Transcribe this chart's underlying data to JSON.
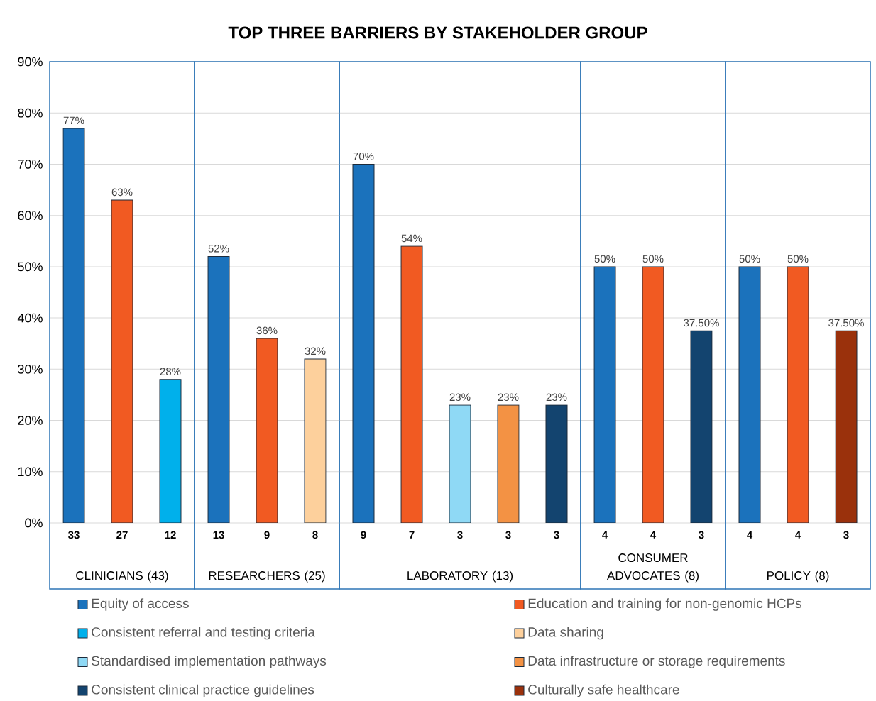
{
  "chart_data": [
    {
      "type": "bar",
      "xlabel": "CLINICIANS (43)",
      "categories": [
        "33",
        "27",
        "12"
      ],
      "ylim": [
        0,
        90
      ],
      "yticks": [
        {
          "value": 0,
          "label": "0%"
        },
        {
          "value": 10,
          "label": "10%"
        },
        {
          "value": 20,
          "label": "20%"
        },
        {
          "value": 30,
          "label": "30%"
        },
        {
          "value": 40,
          "label": "40%"
        },
        {
          "value": 50,
          "label": "50%"
        },
        {
          "value": 60,
          "label": "60%"
        },
        {
          "value": 70,
          "label": "70%"
        },
        {
          "value": 80,
          "label": "80%"
        },
        {
          "value": 90,
          "label": "90%"
        }
      ],
      "grid": "y",
      "legend": "bottom",
      "series": [
        {
          "name": "Equity of access",
          "color": "#1b72bc",
          "values": [
            77,
            null,
            null
          ],
          "value_labels": [
            "77%",
            null,
            null
          ]
        },
        {
          "name": "Education and training for non-genomic HCPs",
          "color": "#f15a22",
          "values": [
            null,
            63,
            null
          ],
          "value_labels": [
            null,
            "63%",
            null
          ]
        },
        {
          "name": "Consistent referral and testing criteria",
          "color": "#00b0eb",
          "values": [
            null,
            null,
            28
          ],
          "value_labels": [
            null,
            null,
            "28%"
          ]
        }
      ]
    },
    {
      "type": "bar",
      "xlabel": "RESEARCHERS (25)",
      "categories": [
        "13",
        "9",
        "8"
      ],
      "ylim": [
        0,
        90
      ],
      "yticks": [
        {
          "value": 0,
          "label": null
        },
        {
          "value": 10,
          "label": null
        },
        {
          "value": 20,
          "label": null
        },
        {
          "value": 30,
          "label": null
        },
        {
          "value": 40,
          "label": null
        },
        {
          "value": 50,
          "label": null
        },
        {
          "value": 60,
          "label": null
        },
        {
          "value": 70,
          "label": null
        },
        {
          "value": 80,
          "label": null
        },
        {
          "value": 90,
          "label": null
        }
      ],
      "grid": "y",
      "tick_labels": "x",
      "legend": "bottom",
      "series": [
        {
          "color": "#1b72bc",
          "values": [
            52,
            null,
            null
          ],
          "value_labels": [
            "52%",
            null,
            null
          ]
        },
        {
          "color": "#f15a22",
          "values": [
            null,
            36,
            null
          ],
          "value_labels": [
            null,
            "36%",
            null
          ]
        },
        {
          "name": "Data sharing",
          "color": "#fdd09c",
          "values": [
            null,
            null,
            32
          ],
          "value_labels": [
            null,
            null,
            "32%"
          ]
        }
      ]
    },
    {
      "type": "bar",
      "title": "TOP THREE BARRIERS BY STAKEHOLDER GROUP",
      "xlabel": "LABORATORY (13)",
      "categories": [
        "9",
        "7",
        "3",
        "3",
        "3"
      ],
      "ylim": [
        0,
        90
      ],
      "yticks": [
        {
          "value": 0,
          "label": null
        },
        {
          "value": 10,
          "label": null
        },
        {
          "value": 20,
          "label": null
        },
        {
          "value": 30,
          "label": null
        },
        {
          "value": 40,
          "label": null
        },
        {
          "value": 50,
          "label": null
        },
        {
          "value": 60,
          "label": null
        },
        {
          "value": 70,
          "label": null
        },
        {
          "value": 80,
          "label": null
        },
        {
          "value": 90,
          "label": null
        }
      ],
      "grid": "y",
      "tick_labels": "x",
      "legend": "bottom",
      "series": [
        {
          "color": "#1b72bc",
          "values": [
            70,
            null,
            null,
            null,
            null
          ],
          "value_labels": [
            "70%",
            null,
            null,
            null,
            null
          ]
        },
        {
          "color": "#f15a22",
          "values": [
            null,
            54,
            null,
            null,
            null
          ],
          "value_labels": [
            null,
            "54%",
            null,
            null,
            null
          ]
        },
        {
          "name": "Standardised implementation pathways",
          "color": "#8fd9f5",
          "values": [
            null,
            null,
            23,
            null,
            null
          ],
          "value_labels": [
            null,
            null,
            "23%",
            null,
            null
          ]
        },
        {
          "name": "Data infrastructure or storage requirements",
          "color": "#f39244",
          "values": [
            null,
            null,
            null,
            23,
            null
          ],
          "value_labels": [
            null,
            null,
            null,
            "23%",
            null
          ]
        },
        {
          "name": "Consistent clinical practice guidelines",
          "color": "#13446f",
          "values": [
            null,
            null,
            null,
            null,
            23
          ],
          "value_labels": [
            null,
            null,
            null,
            null,
            "23%"
          ]
        }
      ]
    },
    {
      "type": "bar",
      "xlabel": "CONSUMER ADVOCATES (8)",
      "categories": [
        "4",
        "4",
        "3"
      ],
      "ylim": [
        0,
        90
      ],
      "yticks": [
        {
          "value": 0,
          "label": null
        },
        {
          "value": 10,
          "label": null
        },
        {
          "value": 20,
          "label": null
        },
        {
          "value": 30,
          "label": null
        },
        {
          "value": 40,
          "label": null
        },
        {
          "value": 50,
          "label": null
        },
        {
          "value": 60,
          "label": null
        },
        {
          "value": 70,
          "label": null
        },
        {
          "value": 80,
          "label": null
        },
        {
          "value": 90,
          "label": null
        }
      ],
      "grid": "y",
      "tick_labels": "x",
      "legend": "bottom",
      "series": [
        {
          "color": "#1b72bc",
          "values": [
            50,
            null,
            null
          ],
          "value_labels": [
            "50%",
            null,
            null
          ]
        },
        {
          "color": "#f15a22",
          "values": [
            null,
            50,
            null
          ],
          "value_labels": [
            null,
            "50%",
            null
          ]
        },
        {
          "color": "#13446f",
          "values": [
            null,
            null,
            37.5
          ],
          "value_labels": [
            null,
            null,
            "37.50%"
          ]
        }
      ]
    },
    {
      "type": "bar",
      "xlabel": "POLICY (8)",
      "categories": [
        "4",
        "4",
        "3"
      ],
      "ylim": [
        0,
        90
      ],
      "yticks": [
        {
          "value": 0,
          "label": null
        },
        {
          "value": 10,
          "label": null
        },
        {
          "value": 20,
          "label": null
        },
        {
          "value": 30,
          "label": null
        },
        {
          "value": 40,
          "label": null
        },
        {
          "value": 50,
          "label": null
        },
        {
          "value": 60,
          "label": null
        },
        {
          "value": 70,
          "label": null
        },
        {
          "value": 80,
          "label": null
        },
        {
          "value": 90,
          "label": null
        }
      ],
      "grid": "y",
      "tick_labels": "x",
      "legend": "bottom",
      "series": [
        {
          "color": "#1b72bc",
          "values": [
            50,
            null,
            null
          ],
          "value_labels": [
            "50%",
            null,
            null
          ]
        },
        {
          "color": "#f15a22",
          "values": [
            null,
            50,
            null
          ],
          "value_labels": [
            null,
            "50%",
            null
          ]
        },
        {
          "name": "Culturally safe healthcare",
          "color": "#9a310c",
          "values": [
            null,
            null,
            37.5
          ],
          "value_labels": [
            null,
            null,
            "37.50%"
          ]
        }
      ]
    }
  ]
}
